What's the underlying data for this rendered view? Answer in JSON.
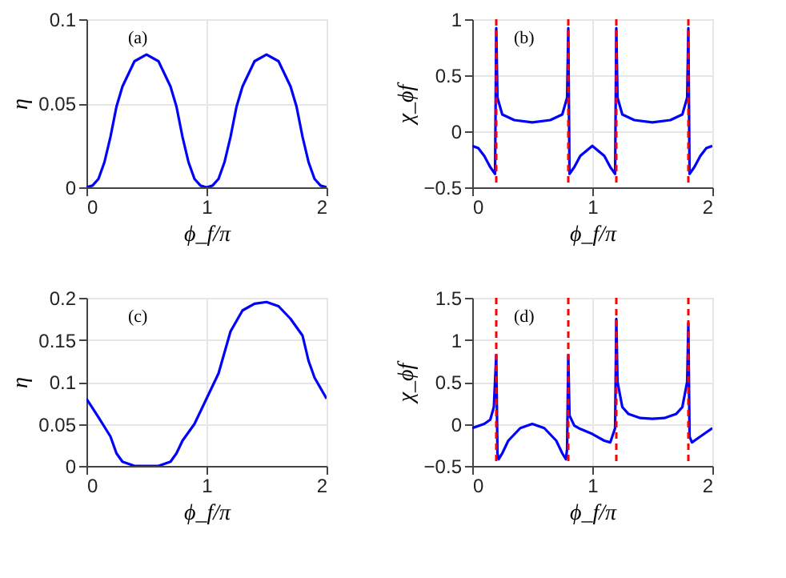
{
  "chart_data": [
    {
      "type": "line",
      "annotations": [
        "(a)"
      ],
      "xlabel": "ϕ_f/π",
      "ylabel": "η",
      "xlim": [
        0,
        2
      ],
      "xticks": [
        0,
        1,
        2
      ],
      "ylim": [
        0,
        0.1
      ],
      "yticks": [
        0,
        0.05,
        0.1
      ],
      "grid": true,
      "x": [
        0,
        0.05,
        0.1,
        0.15,
        0.2,
        0.25,
        0.3,
        0.4,
        0.5,
        0.6,
        0.7,
        0.75,
        0.8,
        0.85,
        0.9,
        0.95,
        1.0,
        1.05,
        1.1,
        1.15,
        1.2,
        1.25,
        1.3,
        1.4,
        1.5,
        1.6,
        1.7,
        1.75,
        1.8,
        1.85,
        1.9,
        1.95,
        2.0
      ],
      "series": [
        {
          "color": "#0000ff",
          "values": [
            0,
            0.001,
            0.005,
            0.015,
            0.03,
            0.048,
            0.06,
            0.075,
            0.079,
            0.075,
            0.06,
            0.048,
            0.03,
            0.015,
            0.005,
            0.001,
            0,
            0.001,
            0.005,
            0.015,
            0.03,
            0.048,
            0.06,
            0.075,
            0.079,
            0.075,
            0.06,
            0.048,
            0.03,
            0.015,
            0.005,
            0.001,
            0
          ]
        }
      ]
    },
    {
      "type": "line",
      "annotations": [
        "(b)"
      ],
      "xlabel": "ϕ_f/π",
      "ylabel": "χ_ϕf",
      "xlim": [
        0,
        2
      ],
      "xticks": [
        0,
        1,
        2
      ],
      "ylim": [
        -0.5,
        1
      ],
      "yticks": [
        -0.5,
        0,
        0.5,
        1
      ],
      "grid": true,
      "x": [
        0,
        0.05,
        0.1,
        0.15,
        0.19,
        0.2,
        0.21,
        0.25,
        0.35,
        0.5,
        0.65,
        0.75,
        0.79,
        0.8,
        0.81,
        0.85,
        0.9,
        1.0,
        1.1,
        1.15,
        1.19,
        1.2,
        1.21,
        1.25,
        1.35,
        1.5,
        1.65,
        1.75,
        1.79,
        1.8,
        1.81,
        1.85,
        1.9,
        1.95,
        2.0
      ],
      "series": [
        {
          "color": "#0000ff",
          "values": [
            -0.13,
            -0.15,
            -0.22,
            -0.32,
            -0.38,
            0.92,
            0.3,
            0.15,
            0.1,
            0.08,
            0.1,
            0.15,
            0.3,
            0.92,
            -0.38,
            -0.32,
            -0.22,
            -0.13,
            -0.22,
            -0.32,
            -0.38,
            0.92,
            0.3,
            0.15,
            0.1,
            0.08,
            0.1,
            0.15,
            0.3,
            0.92,
            -0.38,
            -0.32,
            -0.22,
            -0.15,
            -0.13
          ]
        }
      ],
      "ref_lines": [
        {
          "axis": "x",
          "value": 0.2,
          "color": "#ff0000",
          "line_style": "dashed"
        },
        {
          "axis": "x",
          "value": 0.8,
          "color": "#ff0000",
          "line_style": "dashed"
        },
        {
          "axis": "x",
          "value": 1.2,
          "color": "#ff0000",
          "line_style": "dashed"
        },
        {
          "axis": "x",
          "value": 1.8,
          "color": "#ff0000",
          "line_style": "dashed"
        }
      ]
    },
    {
      "type": "line",
      "annotations": [
        "(c)"
      ],
      "xlabel": "ϕ_f/π",
      "ylabel": "η",
      "xlim": [
        0,
        2
      ],
      "xticks": [
        0,
        1,
        2
      ],
      "ylim": [
        0,
        0.2
      ],
      "yticks": [
        0,
        0.05,
        0.1,
        0.15,
        0.2
      ],
      "grid": true,
      "x": [
        0,
        0.1,
        0.2,
        0.25,
        0.3,
        0.4,
        0.5,
        0.6,
        0.7,
        0.75,
        0.8,
        0.9,
        1.0,
        1.1,
        1.2,
        1.3,
        1.4,
        1.5,
        1.6,
        1.7,
        1.8,
        1.85,
        1.9,
        2.0
      ],
      "series": [
        {
          "color": "#0000ff",
          "values": [
            0.08,
            0.058,
            0.035,
            0.015,
            0.005,
            0,
            0,
            0,
            0.005,
            0.015,
            0.03,
            0.05,
            0.08,
            0.11,
            0.16,
            0.185,
            0.193,
            0.195,
            0.19,
            0.175,
            0.155,
            0.125,
            0.105,
            0.08
          ]
        }
      ]
    },
    {
      "type": "line",
      "annotations": [
        "(d)"
      ],
      "xlabel": "ϕ_f/π",
      "ylabel": "χ_ϕf",
      "xlim": [
        0,
        2
      ],
      "xticks": [
        0,
        1,
        2
      ],
      "ylim": [
        -0.5,
        1.5
      ],
      "yticks": [
        -0.5,
        0,
        0.5,
        1,
        1.5
      ],
      "grid": true,
      "x": [
        0,
        0.1,
        0.15,
        0.18,
        0.2,
        0.21,
        0.22,
        0.25,
        0.3,
        0.4,
        0.5,
        0.6,
        0.7,
        0.75,
        0.78,
        0.79,
        0.8,
        0.81,
        0.85,
        0.9,
        1.0,
        1.1,
        1.15,
        1.19,
        1.2,
        1.21,
        1.25,
        1.3,
        1.4,
        1.5,
        1.6,
        1.7,
        1.75,
        1.79,
        1.8,
        1.81,
        1.83,
        1.9,
        2.0
      ],
      "series": [
        {
          "color": "#0000ff",
          "values": [
            -0.05,
            0,
            0.05,
            0.2,
            0.82,
            -0.35,
            -0.42,
            -0.35,
            -0.2,
            -0.05,
            0,
            -0.05,
            -0.2,
            -0.35,
            -0.42,
            -0.3,
            0.82,
            0.1,
            -0.02,
            -0.06,
            -0.12,
            -0.2,
            -0.22,
            -0.05,
            1.25,
            0.5,
            0.2,
            0.12,
            0.07,
            0.06,
            0.07,
            0.12,
            0.2,
            0.5,
            1.2,
            -0.15,
            -0.22,
            -0.15,
            -0.05
          ]
        }
      ],
      "ref_lines": [
        {
          "axis": "x",
          "value": 0.2,
          "color": "#ff0000",
          "line_style": "dashed"
        },
        {
          "axis": "x",
          "value": 0.8,
          "color": "#ff0000",
          "line_style": "dashed"
        },
        {
          "axis": "x",
          "value": 1.2,
          "color": "#ff0000",
          "line_style": "dashed"
        },
        {
          "axis": "x",
          "value": 1.8,
          "color": "#ff0000",
          "line_style": "dashed"
        }
      ]
    }
  ]
}
